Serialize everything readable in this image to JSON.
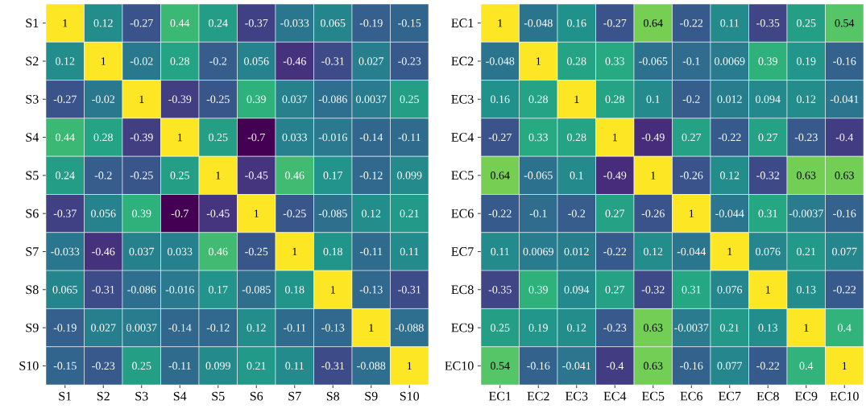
{
  "chart_data": [
    {
      "type": "heatmap",
      "data_labels": true,
      "categories": [
        "S1",
        "S2",
        "S3",
        "S4",
        "S5",
        "S6",
        "S7",
        "S8",
        "S9",
        "S10"
      ],
      "y_categories": [
        "S1",
        "S2",
        "S3",
        "S4",
        "S5",
        "S6",
        "S7",
        "S8",
        "S9",
        "S10"
      ],
      "cells": [
        [
          1,
          0.12,
          -0.27,
          0.44,
          0.24,
          -0.37,
          -0.033,
          0.065,
          -0.19,
          -0.15
        ],
        [
          0.12,
          1,
          -0.02,
          0.28,
          -0.2,
          0.056,
          -0.46,
          -0.31,
          0.027,
          -0.23
        ],
        [
          -0.27,
          -0.02,
          1,
          -0.39,
          -0.25,
          0.39,
          0.037,
          -0.086,
          0.0037,
          0.25
        ],
        [
          0.44,
          0.28,
          -0.39,
          1,
          0.25,
          -0.7,
          0.033,
          -0.016,
          -0.14,
          -0.11
        ],
        [
          0.24,
          -0.2,
          -0.25,
          0.25,
          1,
          -0.45,
          0.46,
          0.17,
          -0.12,
          0.099
        ],
        [
          -0.37,
          0.056,
          0.39,
          -0.7,
          -0.45,
          1,
          -0.25,
          -0.085,
          0.12,
          0.21
        ],
        [
          -0.033,
          -0.46,
          0.037,
          0.033,
          0.46,
          -0.25,
          1,
          0.18,
          -0.11,
          0.11
        ],
        [
          0.065,
          -0.31,
          -0.086,
          -0.016,
          0.17,
          -0.085,
          0.18,
          1,
          -0.13,
          -0.31
        ],
        [
          -0.19,
          0.027,
          0.0037,
          -0.14,
          -0.12,
          0.12,
          -0.11,
          -0.13,
          1,
          -0.088
        ],
        [
          -0.15,
          -0.23,
          0.25,
          -0.11,
          0.099,
          0.21,
          0.11,
          -0.31,
          -0.088,
          1
        ]
      ]
    },
    {
      "type": "heatmap",
      "data_labels": true,
      "categories": [
        "EC1",
        "EC2",
        "EC3",
        "EC4",
        "EC5",
        "EC6",
        "EC7",
        "EC8",
        "EC9",
        "EC10"
      ],
      "y_categories": [
        "EC1",
        "EC2",
        "EC3",
        "EC4",
        "EC5",
        "EC6",
        "EC7",
        "EC8",
        "EC9",
        "EC10"
      ],
      "cells": [
        [
          1,
          -0.048,
          0.16,
          -0.27,
          0.64,
          -0.22,
          0.11,
          -0.35,
          0.25,
          0.54
        ],
        [
          -0.048,
          1,
          0.28,
          0.33,
          -0.065,
          -0.1,
          0.0069,
          0.39,
          0.19,
          -0.16
        ],
        [
          0.16,
          0.28,
          1,
          0.28,
          0.1,
          -0.2,
          0.012,
          0.094,
          0.12,
          -0.041
        ],
        [
          -0.27,
          0.33,
          0.28,
          1,
          -0.49,
          0.27,
          -0.22,
          0.27,
          -0.23,
          -0.4
        ],
        [
          0.64,
          -0.065,
          0.1,
          -0.49,
          1,
          -0.26,
          0.12,
          -0.32,
          0.63,
          0.63
        ],
        [
          -0.22,
          -0.1,
          -0.2,
          0.27,
          -0.26,
          1,
          -0.044,
          0.31,
          -0.0037,
          -0.16
        ],
        [
          0.11,
          0.0069,
          0.012,
          -0.22,
          0.12,
          -0.044,
          1,
          0.076,
          0.21,
          0.077
        ],
        [
          -0.35,
          0.39,
          0.094,
          0.27,
          -0.32,
          0.31,
          0.076,
          1,
          0.13,
          -0.22
        ],
        [
          0.25,
          0.19,
          0.12,
          -0.23,
          0.63,
          -0.0037,
          0.21,
          0.13,
          1,
          0.4
        ],
        [
          0.54,
          -0.16,
          -0.041,
          -0.4,
          0.63,
          -0.16,
          0.077,
          -0.22,
          0.4,
          1
        ]
      ]
    }
  ]
}
